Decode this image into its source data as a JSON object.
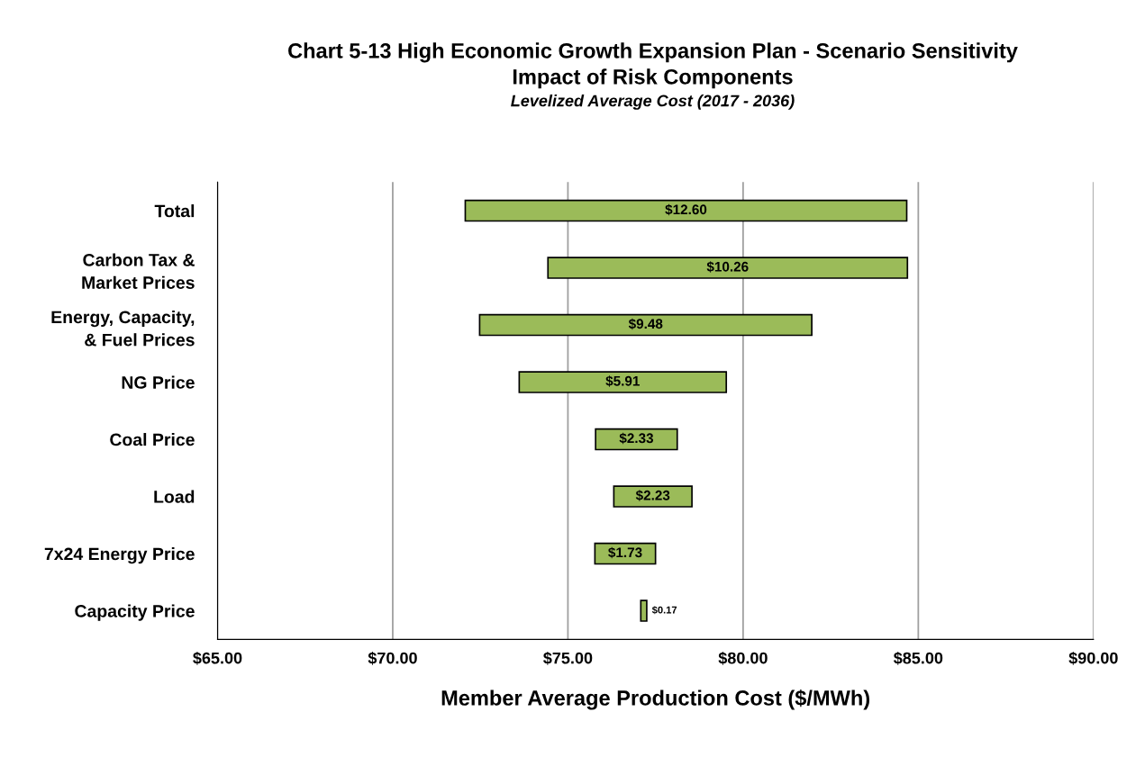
{
  "chart_data": {
    "type": "bar",
    "orientation": "horizontal",
    "title": "Chart 5-13 High Economic Growth Expansion Plan - Scenario Sensitivity\nImpact of Risk Components",
    "subtitle": "Levelized Average Cost (2017 - 2036)",
    "xlabel": "Member Average Production Cost ($/MWh)",
    "categories": [
      "Total",
      "Carbon Tax &\nMarket Prices",
      "Energy, Capacity,\n& Fuel Prices",
      "NG Price",
      "Coal Price",
      "Load",
      "7x24 Energy Price",
      "Capacity Price"
    ],
    "base": [
      72.07,
      74.43,
      72.48,
      73.61,
      75.79,
      76.31,
      75.77,
      77.08
    ],
    "values": [
      12.6,
      10.26,
      9.48,
      5.91,
      2.33,
      2.23,
      1.73,
      0.17
    ],
    "value_labels": [
      "$12.60",
      "$10.26",
      "$9.48",
      "$5.91",
      "$2.33",
      "$2.23",
      "$1.73",
      "$0.17"
    ],
    "color": "#9bbb59",
    "xlim": [
      65,
      90
    ],
    "xticks": [
      {
        "value": 65,
        "label": "$65.00"
      },
      {
        "value": 70,
        "label": "$70.00"
      },
      {
        "value": 75,
        "label": "$75.00"
      },
      {
        "value": 80,
        "label": "$80.00"
      },
      {
        "value": 85,
        "label": "$85.00"
      },
      {
        "value": 90,
        "label": "$90.00"
      }
    ],
    "grid": "x",
    "legend": false
  }
}
